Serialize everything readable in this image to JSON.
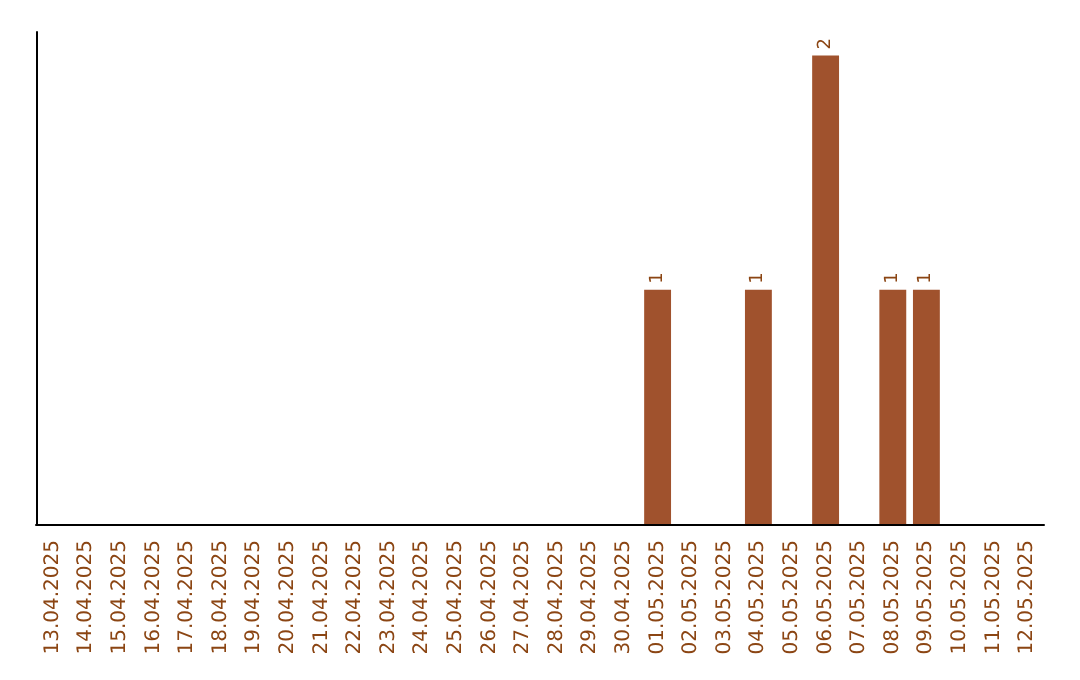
{
  "chart_data": {
    "type": "bar",
    "categories": [
      "13.04.2025",
      "14.04.2025",
      "15.04.2025",
      "16.04.2025",
      "17.04.2025",
      "18.04.2025",
      "19.04.2025",
      "20.04.2025",
      "21.04.2025",
      "22.04.2025",
      "23.04.2025",
      "24.04.2025",
      "25.04.2025",
      "26.04.2025",
      "27.04.2025",
      "28.04.2025",
      "29.04.2025",
      "30.04.2025",
      "01.05.2025",
      "02.05.2025",
      "03.05.2025",
      "04.05.2025",
      "05.05.2025",
      "06.05.2025",
      "07.05.2025",
      "08.05.2025",
      "09.05.2025",
      "10.05.2025",
      "11.05.2025",
      "12.05.2025"
    ],
    "values": [
      null,
      null,
      null,
      null,
      null,
      null,
      null,
      null,
      null,
      null,
      null,
      null,
      null,
      null,
      null,
      null,
      null,
      null,
      1,
      null,
      null,
      1,
      null,
      2,
      null,
      1,
      1,
      null,
      null,
      null
    ],
    "color": "#a0522d",
    "data_labels": true,
    "grid": false,
    "tick_labels": "x"
  }
}
